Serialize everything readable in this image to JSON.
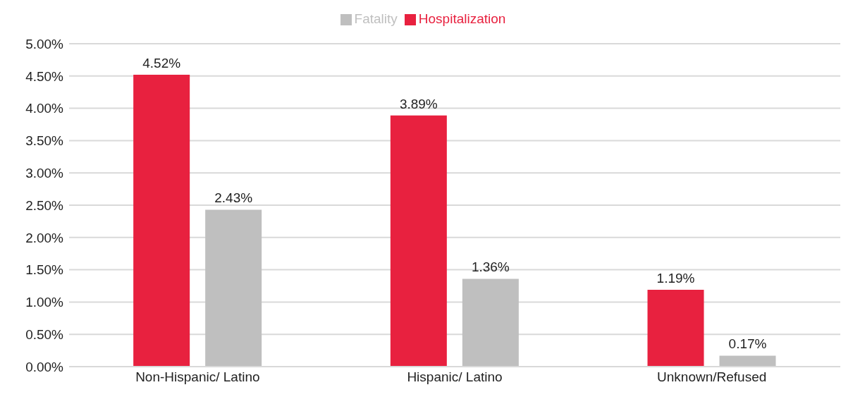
{
  "chart_data": {
    "type": "bar",
    "categories": [
      "Non-Hispanic/ Latino",
      "Hispanic/ Latino",
      "Unknown/Refused"
    ],
    "series": [
      {
        "name": "Hospitalization",
        "color": "#e8213f",
        "values": [
          4.52,
          3.89,
          1.19
        ],
        "value_labels": [
          "4.52%",
          "3.89%",
          "1.19%"
        ]
      },
      {
        "name": "Fatality",
        "color": "#bfbfbf",
        "values": [
          2.43,
          1.36,
          0.17
        ],
        "value_labels": [
          "2.43%",
          "1.36%",
          "0.17%"
        ]
      }
    ],
    "ylim": [
      0,
      5
    ],
    "yticks": [
      {
        "value": 0,
        "label": "0.00%"
      },
      {
        "value": 0.5,
        "label": "0.50%"
      },
      {
        "value": 1,
        "label": "1.00%"
      },
      {
        "value": 1.5,
        "label": "1.50%"
      },
      {
        "value": 2,
        "label": "2.00%"
      },
      {
        "value": 2.5,
        "label": "2.50%"
      },
      {
        "value": 3,
        "label": "3.00%"
      },
      {
        "value": 3.5,
        "label": "3.50%"
      },
      {
        "value": 4,
        "label": "4.00%"
      },
      {
        "value": 4.5,
        "label": "4.50%"
      },
      {
        "value": 5,
        "label": "5.00%"
      }
    ],
    "grid": "y",
    "legend": "top"
  }
}
